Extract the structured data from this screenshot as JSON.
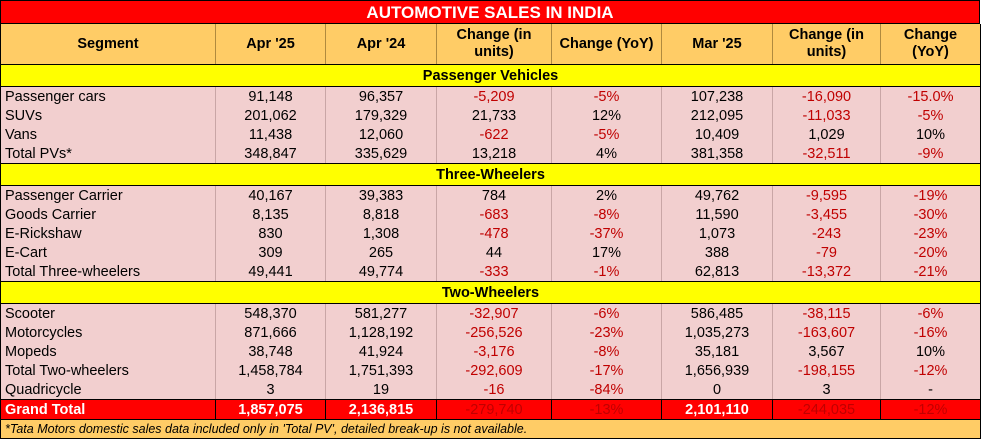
{
  "title": "AUTOMOTIVE SALES IN INDIA",
  "headers": [
    "Segment",
    "Apr '25",
    "Apr '24",
    "Change (in units)",
    "Change (YoY)",
    "Mar '25",
    "Change (in units)",
    "Change (YoY)"
  ],
  "sections": [
    {
      "name": "Passenger Vehicles",
      "rows": [
        [
          "Passenger cars",
          "91,148",
          "96,357",
          "-5,209",
          "-5%",
          "107,238",
          "-16,090",
          "-15.0%"
        ],
        [
          "SUVs",
          "201,062",
          "179,329",
          "21,733",
          "12%",
          "212,095",
          "-11,033",
          "-5%"
        ],
        [
          "Vans",
          "11,438",
          "12,060",
          "-622",
          "-5%",
          "10,409",
          "1,029",
          "10%"
        ],
        [
          "Total PVs*",
          "348,847",
          "335,629",
          "13,218",
          "4%",
          "381,358",
          "-32,511",
          "-9%"
        ]
      ]
    },
    {
      "name": "Three-Wheelers",
      "rows": [
        [
          "Passenger Carrier",
          "40,167",
          "39,383",
          "784",
          "2%",
          "49,762",
          "-9,595",
          "-19%"
        ],
        [
          "Goods Carrier",
          "8,135",
          "8,818",
          "-683",
          "-8%",
          "11,590",
          "-3,455",
          "-30%"
        ],
        [
          "E-Rickshaw",
          "830",
          "1,308",
          "-478",
          "-37%",
          "1,073",
          "-243",
          "-23%"
        ],
        [
          "E-Cart",
          "309",
          "265",
          "44",
          "17%",
          "388",
          "-79",
          "-20%"
        ],
        [
          "Total Three-wheelers",
          "49,441",
          "49,774",
          "-333",
          "-1%",
          "62,813",
          "-13,372",
          "-21%"
        ]
      ]
    },
    {
      "name": "Two-Wheelers",
      "rows": [
        [
          "Scooter",
          "548,370",
          "581,277",
          "-32,907",
          "-6%",
          "586,485",
          "-38,115",
          "-6%"
        ],
        [
          "Motorcycles",
          "871,666",
          "1,128,192",
          "-256,526",
          "-23%",
          "1,035,273",
          "-163,607",
          "-16%"
        ],
        [
          "Mopeds",
          "38,748",
          "41,924",
          "-3,176",
          "-8%",
          "35,181",
          "3,567",
          "10%"
        ],
        [
          "Total Two-wheelers",
          "1,458,784",
          "1,751,393",
          "-292,609",
          "-17%",
          "1,656,939",
          "-198,155",
          "-12%"
        ],
        [
          "Quadricycle",
          "3",
          "19",
          "-16",
          "-84%",
          "0",
          "3",
          "-"
        ]
      ]
    }
  ],
  "grand_total": [
    "Grand Total",
    "1,857,075",
    "2,136,815",
    "-279,740",
    "-13%",
    "2,101,110",
    "-244,035",
    "-12%"
  ],
  "footnote": "*Tata Motors domestic sales data included only in 'Total PV', detailed break-up is not available.",
  "colors": {
    "title_bg": "#ff0000",
    "header_bg": "#ffcc66",
    "section_bg": "#ffff00",
    "row_bg": "#f2cfcf",
    "negative_text": "#c00000"
  }
}
